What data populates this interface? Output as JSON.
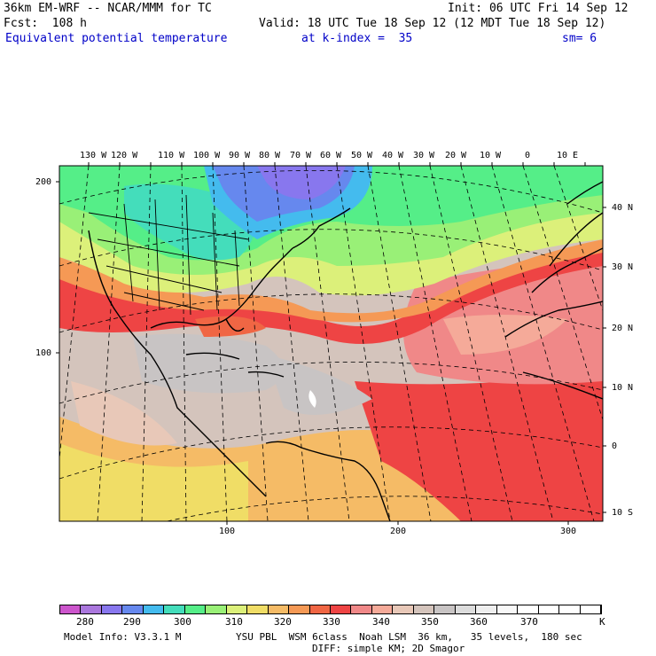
{
  "header": {
    "left_line1": "36km EM-WRF -- NCAR/MMM for TC",
    "left_line2": "Fcst:  108 h",
    "right_line1": "Init: 06 UTC Fri 14 Sep 12",
    "right_line2": "Valid: 18 UTC Tue 18 Sep 12 (12 MDT Tue 18 Sep 12)",
    "field_name": "Equivalent potential temperature",
    "level_text": "at k-index =  35",
    "smoothing": "sm= 6"
  },
  "axes": {
    "top_lon": [
      "130 W",
      "120 W",
      "110 W",
      "100 W",
      "90 W",
      "80 W",
      "70 W",
      "60 W",
      "50 W",
      "40 W",
      "30 W",
      "20 W",
      "10 W",
      "0",
      "10 E"
    ],
    "right_lat": [
      "40 N",
      "30 N",
      "20 N",
      "10 N",
      "0",
      "10 S"
    ],
    "left_grid": [
      "200",
      "100"
    ],
    "bottom_grid": [
      "100",
      "200",
      "300"
    ]
  },
  "colorbar": {
    "colors": [
      "#cc55cc",
      "#aa77dd",
      "#8877ee",
      "#6688ee",
      "#44bbee",
      "#44ddbb",
      "#55ee88",
      "#99f077",
      "#dcf07a",
      "#f0dd66",
      "#f5bb66",
      "#f59955",
      "#f06644",
      "#ee4444",
      "#f08888",
      "#f5aa99",
      "#e8c8b8",
      "#d4c4bc",
      "#c8c4c4",
      "#dcdcdc",
      "#eeeeee",
      "#f8f8f8",
      "#ffffff",
      "#ffffff",
      "#ffffff",
      "#ffffff"
    ],
    "labels": [
      "280",
      "290",
      "300",
      "310",
      "320",
      "330",
      "340",
      "350",
      "360",
      "370"
    ],
    "unit": "K"
  },
  "footer": {
    "line1_left": "Model Info: V3.3.1 M",
    "line1_right": "YSU PBL  WSM 6class  Noah LSM  36 km,   35 levels,  180 sec",
    "line2": "DIFF: simple KM; 2D Smagor"
  }
}
